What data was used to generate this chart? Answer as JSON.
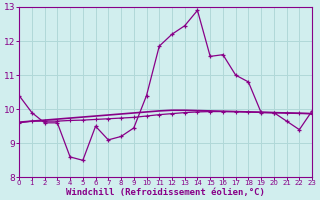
{
  "xlabel": "Windchill (Refroidissement éolien,°C)",
  "background_color": "#d1eeee",
  "grid_color": "#b0d8d8",
  "line_color": "#880088",
  "x_hours": [
    0,
    1,
    2,
    3,
    4,
    5,
    6,
    7,
    8,
    9,
    10,
    11,
    12,
    13,
    14,
    15,
    16,
    17,
    18,
    19,
    20,
    21,
    22,
    23
  ],
  "windchill": [
    10.4,
    9.9,
    9.6,
    9.6,
    8.6,
    8.5,
    9.5,
    9.1,
    9.2,
    9.45,
    10.4,
    11.85,
    12.2,
    12.45,
    12.9,
    11.55,
    11.6,
    11.0,
    10.8,
    9.9,
    9.9,
    9.65,
    9.4,
    9.95
  ],
  "temp": [
    9.6,
    9.65,
    9.65,
    9.65,
    9.67,
    9.68,
    9.7,
    9.72,
    9.74,
    9.76,
    9.8,
    9.84,
    9.87,
    9.9,
    9.92,
    9.93,
    9.93,
    9.93,
    9.92,
    9.91,
    9.9,
    9.89,
    9.88,
    9.87
  ],
  "avg_line": [
    9.62,
    9.65,
    9.68,
    9.71,
    9.74,
    9.77,
    9.8,
    9.83,
    9.86,
    9.89,
    9.92,
    9.95,
    9.97,
    9.97,
    9.96,
    9.95,
    9.94,
    9.93,
    9.92,
    9.91,
    9.9,
    9.89,
    9.88,
    9.87
  ],
  "ylim": [
    8,
    13
  ],
  "yticks": [
    8,
    9,
    10,
    11,
    12,
    13
  ],
  "xlim": [
    0,
    23
  ]
}
